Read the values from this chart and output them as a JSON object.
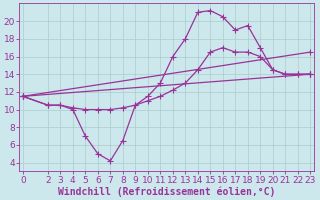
{
  "bg_color": "#cce8ec",
  "grid_color": "#aacccc",
  "line_color": "#993399",
  "xlabel": "Windchill (Refroidissement éolien,°C)",
  "xlim": [
    -0.3,
    23.3
  ],
  "ylim": [
    3.0,
    22.0
  ],
  "yticks": [
    4,
    6,
    8,
    10,
    12,
    14,
    16,
    18,
    20
  ],
  "xticks": [
    0,
    2,
    3,
    4,
    5,
    6,
    7,
    8,
    9,
    10,
    11,
    12,
    13,
    14,
    15,
    16,
    17,
    18,
    19,
    20,
    21,
    22,
    23
  ],
  "curve1_x": [
    0,
    2,
    3,
    4,
    5,
    6,
    7,
    8,
    9,
    10,
    11,
    12,
    13,
    14,
    15,
    16,
    17,
    18,
    19,
    20,
    21,
    22,
    23
  ],
  "curve1_y": [
    11.5,
    10.5,
    10.5,
    10.0,
    7.0,
    5.0,
    4.2,
    6.5,
    10.5,
    11.5,
    13.0,
    16.0,
    18.0,
    21.0,
    21.2,
    20.5,
    19.0,
    19.5,
    17.0,
    14.5,
    14.0,
    14.0,
    14.0
  ],
  "curve2_x": [
    0,
    2,
    3,
    4,
    5,
    6,
    7,
    8,
    9,
    10,
    11,
    12,
    13,
    14,
    15,
    16,
    17,
    18,
    19,
    20,
    21,
    22,
    23
  ],
  "curve2_y": [
    11.5,
    10.5,
    10.5,
    10.2,
    10.0,
    10.0,
    10.0,
    10.2,
    10.5,
    11.0,
    11.5,
    12.2,
    13.0,
    14.5,
    16.5,
    17.0,
    16.5,
    16.5,
    16.0,
    14.5,
    14.0,
    14.0,
    14.0
  ],
  "curve3_x": [
    0,
    23
  ],
  "curve3_y": [
    11.5,
    16.5
  ],
  "curve4_x": [
    0,
    23
  ],
  "curve4_y": [
    11.5,
    14.0
  ],
  "fontsize": 6.5,
  "label_fontsize": 7,
  "marker_size": 2.0,
  "line_width": 0.9
}
